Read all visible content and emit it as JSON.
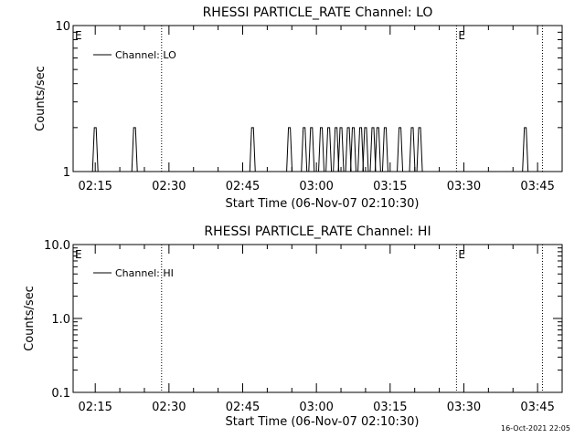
{
  "footer": {
    "timestamp": "16-Oct-2021 22:05"
  },
  "chart_data": [
    {
      "type": "line",
      "title": "RHESSI PARTICLE_RATE Channel: LO",
      "xlabel": "Start Time (06-Nov-07 02:10:30)",
      "ylabel": "Counts/sec",
      "yscale": "log",
      "ylim": [
        1,
        10
      ],
      "xlim": [
        "02:10:30",
        "03:50:00"
      ],
      "x_ticks": [
        "02:15",
        "02:30",
        "02:45",
        "03:00",
        "03:15",
        "03:30",
        "03:45"
      ],
      "y_ticks": [
        "1",
        "10"
      ],
      "legend": {
        "placement": "top-left",
        "entries": [
          "Channel: LO"
        ]
      },
      "markers": [
        {
          "label": "E",
          "time": "02:10:30"
        },
        {
          "label": "",
          "time": "02:28:30"
        },
        {
          "label": "E",
          "time": "03:28:30"
        },
        {
          "label": "",
          "time": "03:46:00"
        }
      ],
      "series": [
        {
          "name": "Channel: LO",
          "spikes": [
            {
              "time": "02:15:00",
              "value": 2
            },
            {
              "time": "02:23:00",
              "value": 2
            },
            {
              "time": "02:47:00",
              "value": 2
            },
            {
              "time": "02:54:30",
              "value": 2
            },
            {
              "time": "02:57:30",
              "value": 2
            },
            {
              "time": "02:59:00",
              "value": 2
            },
            {
              "time": "03:01:00",
              "value": 2
            },
            {
              "time": "03:02:30",
              "value": 2
            },
            {
              "time": "03:04:00",
              "value": 2
            },
            {
              "time": "03:05:00",
              "value": 2
            },
            {
              "time": "03:06:30",
              "value": 2
            },
            {
              "time": "03:07:30",
              "value": 2
            },
            {
              "time": "03:09:00",
              "value": 2
            },
            {
              "time": "03:10:00",
              "value": 2
            },
            {
              "time": "03:11:30",
              "value": 2
            },
            {
              "time": "03:12:30",
              "value": 2
            },
            {
              "time": "03:14:00",
              "value": 2
            },
            {
              "time": "03:17:00",
              "value": 2
            },
            {
              "time": "03:19:30",
              "value": 2
            },
            {
              "time": "03:21:00",
              "value": 2
            },
            {
              "time": "03:42:30",
              "value": 2
            }
          ]
        }
      ]
    },
    {
      "type": "line",
      "title": "RHESSI PARTICLE_RATE Channel: HI",
      "xlabel": "Start Time (06-Nov-07 02:10:30)",
      "ylabel": "Counts/sec",
      "yscale": "log",
      "ylim": [
        0.1,
        10
      ],
      "xlim": [
        "02:10:30",
        "03:50:00"
      ],
      "x_ticks": [
        "02:15",
        "02:30",
        "02:45",
        "03:00",
        "03:15",
        "03:30",
        "03:45"
      ],
      "y_ticks": [
        "0.1",
        "1.0",
        "10.0"
      ],
      "legend": {
        "placement": "top-left",
        "entries": [
          "Channel: HI"
        ]
      },
      "markers": [
        {
          "label": "E",
          "time": "02:10:30"
        },
        {
          "label": "",
          "time": "02:28:30"
        },
        {
          "label": "E",
          "time": "03:28:30"
        },
        {
          "label": "",
          "time": "03:46:00"
        }
      ],
      "series": [
        {
          "name": "Channel: HI",
          "spikes": []
        }
      ]
    }
  ]
}
